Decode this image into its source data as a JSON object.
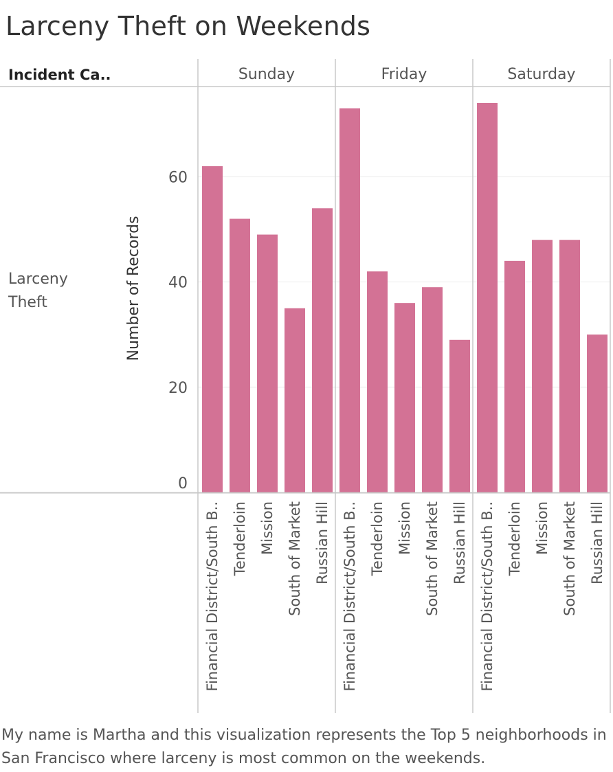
{
  "title": "Larceny Theft on Weekends",
  "caption": "My name is Martha and this visualization represents the Top 5 neighborhoods in San Francisco where larceny is most common on the weekends.",
  "colors": {
    "bar": "#D37295",
    "grid": "#EBEBEB",
    "divider": "#C8C8C8",
    "text": "#555555"
  },
  "chart_data": {
    "type": "bar",
    "row_header": "Incident Ca..",
    "row_label": "Larceny Theft",
    "ylabel": "Number of Records",
    "yticks": [
      0,
      20,
      40,
      60
    ],
    "ylim": [
      0,
      77
    ],
    "panels": [
      {
        "name": "Sunday",
        "categories": [
          "Financial District/South B..",
          "Tenderloin",
          "Mission",
          "South of Market",
          "Russian Hill"
        ],
        "values": [
          62,
          52,
          49,
          35,
          54
        ]
      },
      {
        "name": "Friday",
        "categories": [
          "Financial District/South B..",
          "Tenderloin",
          "Mission",
          "South of Market",
          "Russian Hill"
        ],
        "values": [
          73,
          42,
          36,
          39,
          29
        ]
      },
      {
        "name": "Saturday",
        "categories": [
          "Financial District/South B..",
          "Tenderloin",
          "Mission",
          "South of Market",
          "Russian Hill"
        ],
        "values": [
          74,
          44,
          48,
          48,
          30
        ]
      }
    ]
  }
}
